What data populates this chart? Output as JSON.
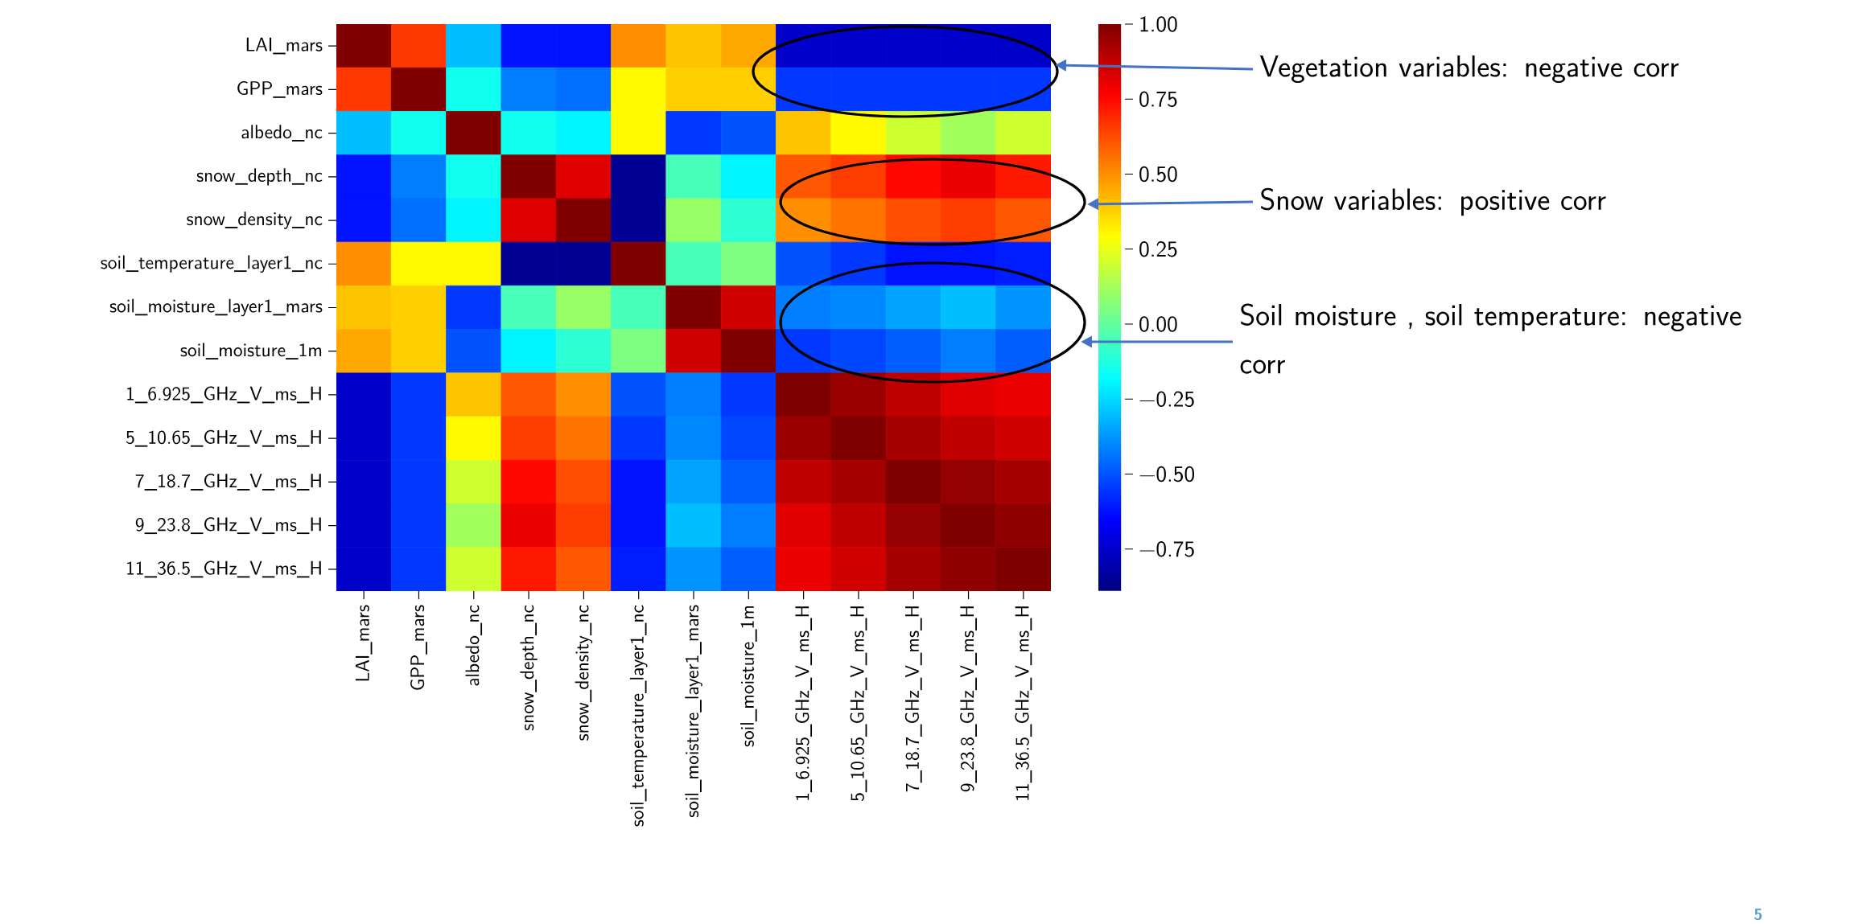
{
  "chart_data": {
    "type": "heatmap",
    "categories": [
      "LAI_mars",
      "GPP_mars",
      "albedo_nc",
      "snow_depth_nc",
      "snow_density_nc",
      "soil_temperature_layer1_nc",
      "soil_moisture_layer1_mars",
      "soil_moisture_1m",
      "1_6.925_GHz_V_ms_H",
      "5_10.65_GHz_V_ms_H",
      "7_18.7_GHz_V_ms_H",
      "9_23.8_GHz_V_ms_H",
      "11_36.5_GHz_V_ms_H"
    ],
    "y_categories": [
      "LAI_mars",
      "GPP_mars",
      "albedo_nc",
      "snow_depth_nc",
      "snow_density_nc",
      "soil_temperature_layer1_nc",
      "soil_moisture_layer1_mars",
      "soil_moisture_1m",
      "1_6.925_GHz_V_ms_H",
      "5_10.65_GHz_V_ms_H",
      "7_18.7_GHz_V_ms_H",
      "9_23.8_GHz_V_ms_H",
      "11_36.5_GHz_V_ms_H"
    ],
    "cells": [
      [
        1.0,
        0.66,
        -0.3,
        -0.62,
        -0.62,
        0.5,
        0.4,
        0.45,
        -0.75,
        -0.75,
        -0.75,
        -0.75,
        -0.75
      ],
      [
        0.66,
        1.0,
        -0.15,
        -0.42,
        -0.45,
        0.3,
        0.38,
        0.38,
        -0.55,
        -0.55,
        -0.55,
        -0.55,
        -0.55
      ],
      [
        -0.3,
        -0.15,
        1.0,
        -0.15,
        -0.2,
        0.3,
        -0.55,
        -0.5,
        0.4,
        0.3,
        0.2,
        0.12,
        0.2
      ],
      [
        -0.62,
        -0.42,
        -0.15,
        1.0,
        0.82,
        -0.85,
        -0.05,
        -0.2,
        0.6,
        0.65,
        0.75,
        0.8,
        0.72
      ],
      [
        -0.62,
        -0.45,
        -0.2,
        0.82,
        1.0,
        -0.85,
        0.1,
        -0.1,
        0.5,
        0.55,
        0.62,
        0.65,
        0.6
      ],
      [
        0.5,
        0.3,
        0.3,
        -0.85,
        -0.85,
        1.0,
        -0.05,
        0.05,
        -0.5,
        -0.55,
        -0.62,
        -0.62,
        -0.6
      ],
      [
        0.4,
        0.38,
        -0.55,
        -0.05,
        0.1,
        -0.05,
        1.0,
        0.85,
        -0.42,
        -0.4,
        -0.35,
        -0.3,
        -0.38
      ],
      [
        0.45,
        0.38,
        -0.5,
        -0.2,
        -0.1,
        0.05,
        0.85,
        1.0,
        -0.55,
        -0.52,
        -0.48,
        -0.42,
        -0.48
      ],
      [
        -0.75,
        -0.55,
        0.4,
        0.6,
        0.5,
        -0.5,
        -0.42,
        -0.55,
        1.0,
        0.95,
        0.88,
        0.82,
        0.8
      ],
      [
        -0.75,
        -0.55,
        0.3,
        0.65,
        0.55,
        -0.55,
        -0.4,
        -0.52,
        0.95,
        1.0,
        0.93,
        0.88,
        0.85
      ],
      [
        -0.75,
        -0.55,
        0.2,
        0.75,
        0.62,
        -0.62,
        -0.35,
        -0.48,
        0.88,
        0.93,
        1.0,
        0.96,
        0.93
      ],
      [
        -0.75,
        -0.55,
        0.12,
        0.8,
        0.65,
        -0.62,
        -0.3,
        -0.42,
        0.82,
        0.88,
        0.96,
        1.0,
        0.97
      ],
      [
        -0.75,
        -0.55,
        0.2,
        0.72,
        0.6,
        -0.6,
        -0.38,
        -0.48,
        0.8,
        0.85,
        0.93,
        0.97,
        1.0
      ]
    ],
    "clim": [
      -0.89,
      1.0
    ],
    "cticks": [
      {
        "value": -0.75,
        "label": "−0.75"
      },
      {
        "value": -0.5,
        "label": "−0.50"
      },
      {
        "value": -0.25,
        "label": "−0.25"
      },
      {
        "value": 0,
        "label": "0.00"
      },
      {
        "value": 0.25,
        "label": "0.25"
      },
      {
        "value": 0.5,
        "label": "0.50"
      },
      {
        "value": 0.75,
        "label": "0.75"
      },
      {
        "value": 1.0,
        "label": "1.00"
      }
    ],
    "annotations": [
      "Vegetation variables: negative corr",
      "Snow variables: positive corr",
      "Soil moisture , soil temperature: negative corr",
      "5"
    ]
  }
}
